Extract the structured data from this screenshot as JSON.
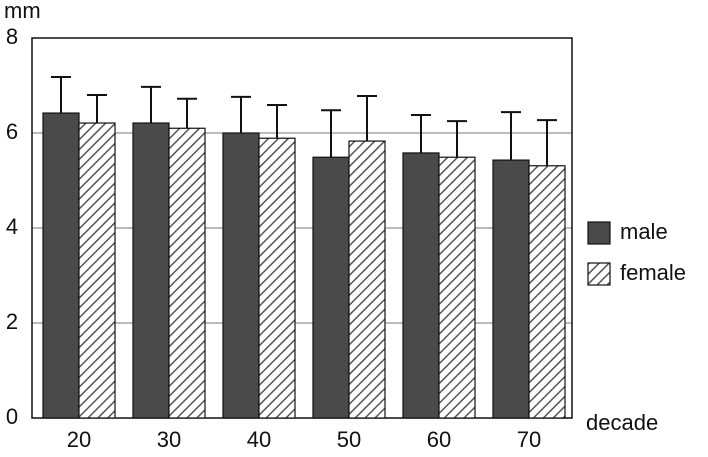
{
  "chart_data": {
    "type": "bar",
    "y_label": "mm",
    "x_label": "decade",
    "categories": [
      "20",
      "30",
      "40",
      "50",
      "60",
      "70"
    ],
    "series": [
      {
        "name": "male",
        "color": "#4a4a4a",
        "values": [
          6.42,
          6.21,
          6.0,
          5.49,
          5.58,
          5.43
        ],
        "errors": [
          0.76,
          0.76,
          0.76,
          0.99,
          0.8,
          1.01
        ]
      },
      {
        "name": "female",
        "color": "#4a4a4a",
        "pattern": "diagonal",
        "values": [
          6.21,
          6.1,
          5.89,
          5.83,
          5.49,
          5.31
        ],
        "errors": [
          0.59,
          0.62,
          0.7,
          0.95,
          0.76,
          0.96
        ]
      }
    ],
    "ylim": [
      0,
      8
    ],
    "yticks": [
      0,
      2,
      4,
      6,
      8
    ],
    "grid": true,
    "legend": "right"
  }
}
